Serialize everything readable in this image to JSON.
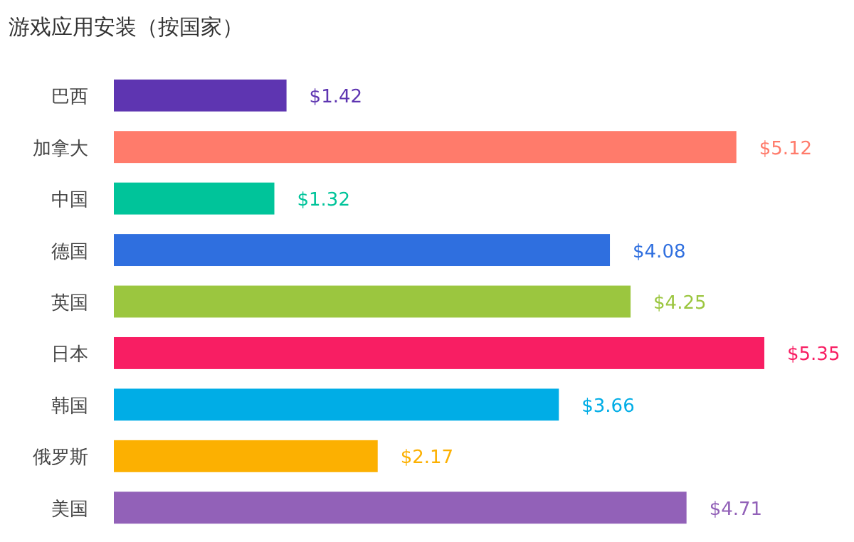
{
  "chart_data": {
    "type": "bar",
    "orientation": "horizontal",
    "title": "游戏应用安装（按国家）",
    "categories": [
      "巴西",
      "加拿大",
      "中国",
      "德国",
      "英国",
      "日本",
      "韩国",
      "俄罗斯",
      "美国"
    ],
    "values": [
      1.42,
      5.12,
      1.32,
      4.08,
      4.25,
      5.35,
      3.66,
      2.17,
      4.71
    ],
    "colors": [
      "#5e35b1",
      "#ff7b6b",
      "#00c49a",
      "#2f6fdf",
      "#9bc63f",
      "#f81e63",
      "#00ade6",
      "#fcb001",
      "#9261b8"
    ],
    "value_labels": [
      "$1.42",
      "$5.12",
      "$1.32",
      "$4.08",
      "$4.25",
      "$5.35",
      "$3.66",
      "$2.17",
      "$4.71"
    ]
  }
}
